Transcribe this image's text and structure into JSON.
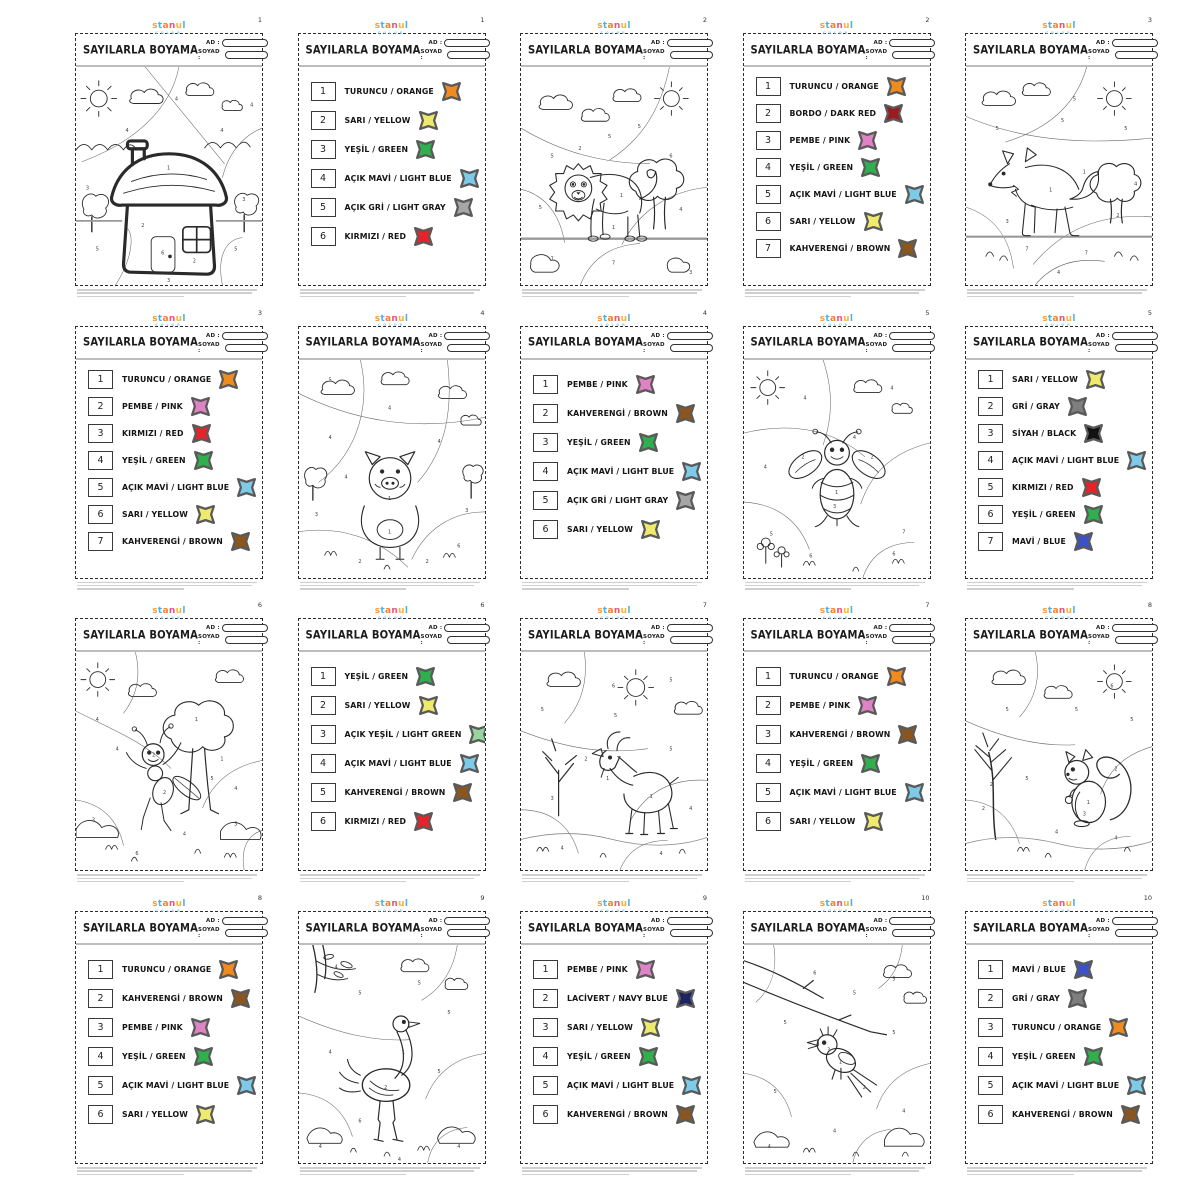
{
  "brand": {
    "logo_text": "stanul",
    "logo_sub": "color",
    "logo_letter_colors": [
      "#f59b3c",
      "#4db3e6",
      "#f2812f",
      "#e8577d",
      "#f5b53c",
      "#4db3e6"
    ]
  },
  "worksheet": {
    "title": "SAYILARLA BOYAMA",
    "name_label": "AD :",
    "surname_label": "SOYAD :"
  },
  "pages": [
    {
      "page_number": "1",
      "type": "picture",
      "subject": "house"
    },
    {
      "page_number": "1",
      "type": "legend",
      "items": [
        {
          "n": "1",
          "label": "TURUNCU / ORANGE",
          "color": "#F28B1D"
        },
        {
          "n": "2",
          "label": "SARI / YELLOW",
          "color": "#EFEA6B"
        },
        {
          "n": "3",
          "label": "YEŞİL / GREEN",
          "color": "#2FAF4D"
        },
        {
          "n": "4",
          "label": "AÇIK MAVİ / LIGHT BLUE",
          "color": "#7DCBE9"
        },
        {
          "n": "5",
          "label": "AÇIK GRİ / LIGHT GRAY",
          "color": "#A6A6A6"
        },
        {
          "n": "6",
          "label": "KIRMIZI / RED",
          "color": "#E52328"
        }
      ]
    },
    {
      "page_number": "2",
      "type": "picture",
      "subject": "lion"
    },
    {
      "page_number": "2",
      "type": "legend",
      "items": [
        {
          "n": "1",
          "label": "TURUNCU / ORANGE",
          "color": "#F28B1D"
        },
        {
          "n": "2",
          "label": "BORDO / DARK RED",
          "color": "#9C1B1F"
        },
        {
          "n": "3",
          "label": "PEMBE / PINK",
          "color": "#DE84C6"
        },
        {
          "n": "4",
          "label": "YEŞİL / GREEN",
          "color": "#2FAF4D"
        },
        {
          "n": "5",
          "label": "AÇIK MAVİ / LIGHT BLUE",
          "color": "#7DCBE9"
        },
        {
          "n": "6",
          "label": "SARI / YELLOW",
          "color": "#EFEA6B"
        },
        {
          "n": "7",
          "label": "KAHVERENGİ / BROWN",
          "color": "#8A561E"
        }
      ]
    },
    {
      "page_number": "3",
      "type": "picture",
      "subject": "fox"
    },
    {
      "page_number": "3",
      "type": "legend",
      "items": [
        {
          "n": "1",
          "label": "TURUNCU / ORANGE",
          "color": "#F28B1D"
        },
        {
          "n": "2",
          "label": "PEMBE / PINK",
          "color": "#DE84C6"
        },
        {
          "n": "3",
          "label": "KIRMIZI / RED",
          "color": "#E52328"
        },
        {
          "n": "4",
          "label": "YEŞİL / GREEN",
          "color": "#2FAF4D"
        },
        {
          "n": "5",
          "label": "AÇIK MAVİ / LIGHT BLUE",
          "color": "#7DCBE9"
        },
        {
          "n": "6",
          "label": "SARI / YELLOW",
          "color": "#EFEA6B"
        },
        {
          "n": "7",
          "label": "KAHVERENGİ / BROWN",
          "color": "#8A561E"
        }
      ]
    },
    {
      "page_number": "4",
      "type": "picture",
      "subject": "pig"
    },
    {
      "page_number": "4",
      "type": "legend",
      "items": [
        {
          "n": "1",
          "label": "PEMBE / PINK",
          "color": "#DE84C6"
        },
        {
          "n": "2",
          "label": "KAHVERENGİ / BROWN",
          "color": "#8A561E"
        },
        {
          "n": "3",
          "label": "YEŞİL / GREEN",
          "color": "#2FAF4D"
        },
        {
          "n": "4",
          "label": "AÇIK MAVİ / LIGHT BLUE",
          "color": "#7DCBE9"
        },
        {
          "n": "5",
          "label": "AÇIK GRİ / LIGHT GRAY",
          "color": "#A6A6A6"
        },
        {
          "n": "6",
          "label": "SARI / YELLOW",
          "color": "#EFEA6B"
        }
      ]
    },
    {
      "page_number": "5",
      "type": "picture",
      "subject": "bee"
    },
    {
      "page_number": "5",
      "type": "legend",
      "items": [
        {
          "n": "1",
          "label": "SARI / YELLOW",
          "color": "#EFEA6B"
        },
        {
          "n": "2",
          "label": "GRİ / GRAY",
          "color": "#7E7E7E"
        },
        {
          "n": "3",
          "label": "SİYAH / BLACK",
          "color": "#121212"
        },
        {
          "n": "4",
          "label": "AÇIK MAVİ / LIGHT BLUE",
          "color": "#7DCBE9"
        },
        {
          "n": "5",
          "label": "KIRMIZI / RED",
          "color": "#E52328"
        },
        {
          "n": "6",
          "label": "YEŞİL / GREEN",
          "color": "#2FAF4D"
        },
        {
          "n": "7",
          "label": "MAVİ / BLUE",
          "color": "#3C51C5"
        }
      ]
    },
    {
      "page_number": "6",
      "type": "picture",
      "subject": "ant"
    },
    {
      "page_number": "6",
      "type": "legend",
      "items": [
        {
          "n": "1",
          "label": "YEŞİL / GREEN",
          "color": "#2FAF4D"
        },
        {
          "n": "2",
          "label": "SARI / YELLOW",
          "color": "#EFEA6B"
        },
        {
          "n": "3",
          "label": "AÇIK YEŞİL / LIGHT GREEN",
          "color": "#96D5A0"
        },
        {
          "n": "4",
          "label": "AÇIK MAVİ / LIGHT BLUE",
          "color": "#7DCBE9"
        },
        {
          "n": "5",
          "label": "KAHVERENGİ / BROWN",
          "color": "#8A561E"
        },
        {
          "n": "6",
          "label": "KIRMIZI / RED",
          "color": "#E52328"
        }
      ]
    },
    {
      "page_number": "7",
      "type": "picture",
      "subject": "goat"
    },
    {
      "page_number": "7",
      "type": "legend",
      "items": [
        {
          "n": "1",
          "label": "TURUNCU / ORANGE",
          "color": "#F28B1D"
        },
        {
          "n": "2",
          "label": "PEMBE / PINK",
          "color": "#DE84C6"
        },
        {
          "n": "3",
          "label": "KAHVERENGİ / BROWN",
          "color": "#8A561E"
        },
        {
          "n": "4",
          "label": "YEŞİL / GREEN",
          "color": "#2FAF4D"
        },
        {
          "n": "5",
          "label": "AÇIK MAVİ / LIGHT BLUE",
          "color": "#7DCBE9"
        },
        {
          "n": "6",
          "label": "SARI / YELLOW",
          "color": "#EFEA6B"
        }
      ]
    },
    {
      "page_number": "8",
      "type": "picture",
      "subject": "squirrel"
    },
    {
      "page_number": "8",
      "type": "legend",
      "items": [
        {
          "n": "1",
          "label": "TURUNCU / ORANGE",
          "color": "#F28B1D"
        },
        {
          "n": "2",
          "label": "KAHVERENGİ / BROWN",
          "color": "#8A561E"
        },
        {
          "n": "3",
          "label": "PEMBE / PINK",
          "color": "#DE84C6"
        },
        {
          "n": "4",
          "label": "YEŞİL / GREEN",
          "color": "#2FAF4D"
        },
        {
          "n": "5",
          "label": "AÇIK MAVİ / LIGHT BLUE",
          "color": "#7DCBE9"
        },
        {
          "n": "6",
          "label": "SARI / YELLOW",
          "color": "#EFEA6B"
        }
      ]
    },
    {
      "page_number": "9",
      "type": "picture",
      "subject": "ostrich"
    },
    {
      "page_number": "9",
      "type": "legend",
      "items": [
        {
          "n": "1",
          "label": "PEMBE / PINK",
          "color": "#DE84C6"
        },
        {
          "n": "2",
          "label": "LACİVERT / NAVY BLUE",
          "color": "#1C2361"
        },
        {
          "n": "3",
          "label": "SARI / YELLOW",
          "color": "#EFEA6B"
        },
        {
          "n": "4",
          "label": "YEŞİL / GREEN",
          "color": "#2FAF4D"
        },
        {
          "n": "5",
          "label": "AÇIK MAVİ / LIGHT BLUE",
          "color": "#7DCBE9"
        },
        {
          "n": "6",
          "label": "KAHVERENGİ / BROWN",
          "color": "#8A561E"
        }
      ]
    },
    {
      "page_number": "10",
      "type": "picture",
      "subject": "bird"
    },
    {
      "page_number": "10",
      "type": "legend",
      "items": [
        {
          "n": "1",
          "label": "MAVİ / BLUE",
          "color": "#3C51C5"
        },
        {
          "n": "2",
          "label": "GRİ / GRAY",
          "color": "#7E7E7E"
        },
        {
          "n": "3",
          "label": "TURUNCU / ORANGE",
          "color": "#F28B1D"
        },
        {
          "n": "4",
          "label": "YEŞİL / GREEN",
          "color": "#2FAF4D"
        },
        {
          "n": "5",
          "label": "AÇIK MAVİ / LIGHT BLUE",
          "color": "#7DCBE9"
        },
        {
          "n": "6",
          "label": "KAHVERENGİ / BROWN",
          "color": "#8A561E"
        }
      ]
    }
  ]
}
